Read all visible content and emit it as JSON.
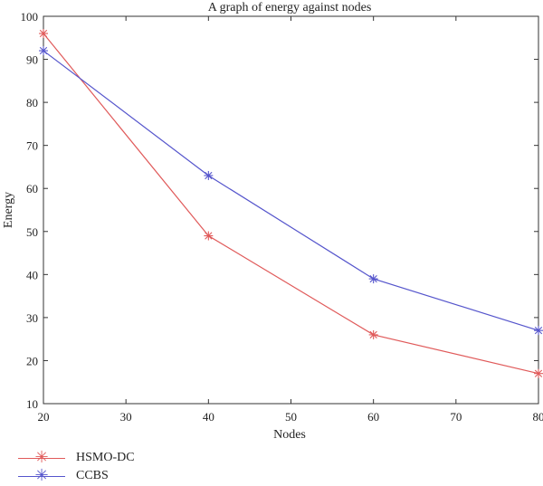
{
  "chart_data": {
    "type": "line",
    "title": "A graph of energy against nodes",
    "xlabel": "Nodes",
    "ylabel": "Energy",
    "xlim": [
      20,
      80
    ],
    "ylim": [
      10,
      100
    ],
    "xticks": [
      20,
      30,
      40,
      50,
      60,
      70,
      80
    ],
    "yticks": [
      10,
      20,
      30,
      40,
      50,
      60,
      70,
      80,
      90,
      100
    ],
    "grid": false,
    "legend_position": "bottom-left",
    "x": [
      20,
      40,
      60,
      80
    ],
    "series": [
      {
        "name": "HSMO-DC",
        "values": [
          96,
          49,
          26,
          17
        ],
        "color": "#e05a5a",
        "marker": "star-icon"
      },
      {
        "name": "CCBS",
        "values": [
          92,
          63,
          39,
          27
        ],
        "color": "#5555cc",
        "marker": "star-icon"
      }
    ]
  }
}
